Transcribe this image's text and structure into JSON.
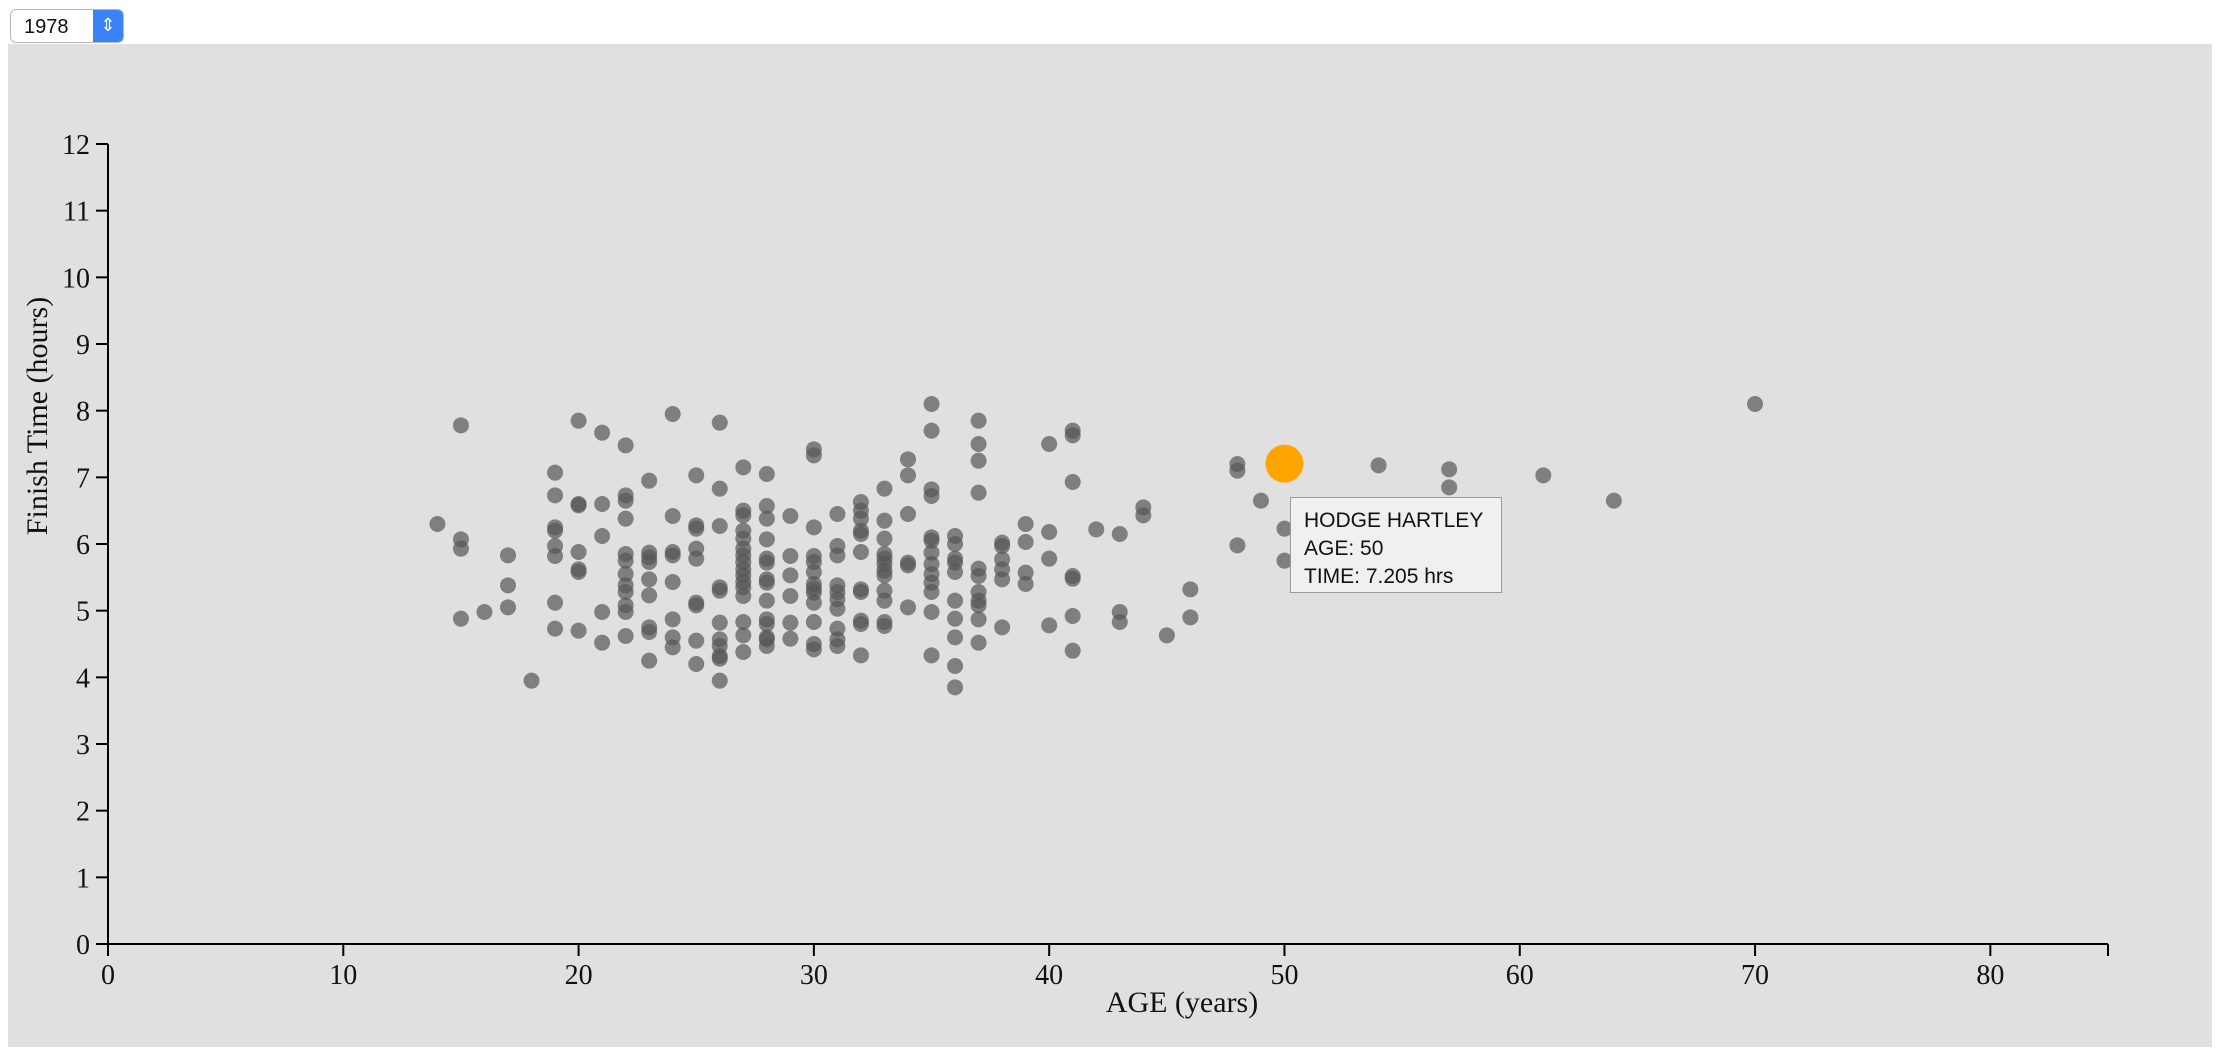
{
  "controls": {
    "year_select": {
      "value": "1978"
    }
  },
  "colors": {
    "background": "#e0e0e0",
    "points": "#555555",
    "highlight": "#ffa500"
  },
  "tooltip": {
    "name": "HODGE HARTLEY",
    "age_text": "AGE: 50",
    "time_text": "TIME: 7.205 hrs"
  },
  "chart_data": {
    "type": "scatter",
    "title": "",
    "xlabel": "AGE (years)",
    "ylabel": "Finish Time (hours)",
    "xlim": [
      0,
      85
    ],
    "ylim": [
      0,
      12
    ],
    "x_ticks": [
      "0",
      "10",
      "20",
      "30",
      "40",
      "50",
      "60",
      "70",
      "80"
    ],
    "y_ticks": [
      "0",
      "1",
      "2",
      "3",
      "4",
      "5",
      "6",
      "7",
      "8",
      "9",
      "10",
      "11",
      "12"
    ],
    "grid": false,
    "highlight": {
      "name": "HODGE HARTLEY",
      "x": 50,
      "y": 7.205
    },
    "points": [
      [
        14,
        6.3
      ],
      [
        15,
        7.78
      ],
      [
        15,
        6.07
      ],
      [
        15,
        5.93
      ],
      [
        15,
        4.88
      ],
      [
        16,
        4.98
      ],
      [
        17,
        5.83
      ],
      [
        17,
        5.38
      ],
      [
        17,
        5.05
      ],
      [
        18,
        3.95
      ],
      [
        19,
        7.07
      ],
      [
        19,
        6.73
      ],
      [
        19,
        6.25
      ],
      [
        19,
        6.2
      ],
      [
        19,
        5.97
      ],
      [
        19,
        5.82
      ],
      [
        19,
        5.12
      ],
      [
        19,
        4.73
      ],
      [
        20,
        7.85
      ],
      [
        20,
        6.58
      ],
      [
        20,
        6.6
      ],
      [
        20,
        5.88
      ],
      [
        20,
        5.62
      ],
      [
        20,
        5.58
      ],
      [
        20,
        4.7
      ],
      [
        21,
        7.67
      ],
      [
        21,
        6.6
      ],
      [
        21,
        6.12
      ],
      [
        21,
        4.98
      ],
      [
        21,
        4.52
      ],
      [
        22,
        7.48
      ],
      [
        22,
        6.73
      ],
      [
        22,
        6.65
      ],
      [
        22,
        6.38
      ],
      [
        22,
        5.85
      ],
      [
        22,
        5.75
      ],
      [
        22,
        5.55
      ],
      [
        22,
        5.38
      ],
      [
        22,
        5.28
      ],
      [
        22,
        5.08
      ],
      [
        22,
        4.98
      ],
      [
        22,
        4.62
      ],
      [
        23,
        6.95
      ],
      [
        23,
        5.87
      ],
      [
        23,
        5.8
      ],
      [
        23,
        5.73
      ],
      [
        23,
        5.47
      ],
      [
        23,
        5.23
      ],
      [
        23,
        4.75
      ],
      [
        23,
        4.68
      ],
      [
        23,
        4.25
      ],
      [
        24,
        7.95
      ],
      [
        24,
        6.42
      ],
      [
        24,
        5.88
      ],
      [
        24,
        5.83
      ],
      [
        24,
        5.43
      ],
      [
        24,
        4.87
      ],
      [
        24,
        4.6
      ],
      [
        24,
        4.45
      ],
      [
        25,
        7.03
      ],
      [
        25,
        6.28
      ],
      [
        25,
        6.23
      ],
      [
        25,
        5.93
      ],
      [
        25,
        5.78
      ],
      [
        25,
        5.12
      ],
      [
        25,
        5.08
      ],
      [
        25,
        4.55
      ],
      [
        25,
        4.2
      ],
      [
        26,
        7.82
      ],
      [
        26,
        6.83
      ],
      [
        26,
        6.27
      ],
      [
        26,
        5.35
      ],
      [
        26,
        5.3
      ],
      [
        26,
        4.82
      ],
      [
        26,
        4.57
      ],
      [
        26,
        4.47
      ],
      [
        26,
        4.32
      ],
      [
        26,
        4.28
      ],
      [
        26,
        3.95
      ],
      [
        27,
        7.15
      ],
      [
        27,
        6.5
      ],
      [
        27,
        6.43
      ],
      [
        27,
        6.2
      ],
      [
        27,
        6.08
      ],
      [
        27,
        5.93
      ],
      [
        27,
        5.83
      ],
      [
        27,
        5.73
      ],
      [
        27,
        5.62
      ],
      [
        27,
        5.53
      ],
      [
        27,
        5.43
      ],
      [
        27,
        5.35
      ],
      [
        27,
        5.22
      ],
      [
        27,
        4.83
      ],
      [
        27,
        4.63
      ],
      [
        27,
        4.38
      ],
      [
        28,
        7.05
      ],
      [
        28,
        6.57
      ],
      [
        28,
        6.38
      ],
      [
        28,
        6.07
      ],
      [
        28,
        5.78
      ],
      [
        28,
        5.72
      ],
      [
        28,
        5.47
      ],
      [
        28,
        5.42
      ],
      [
        28,
        5.15
      ],
      [
        28,
        4.87
      ],
      [
        28,
        4.8
      ],
      [
        28,
        4.6
      ],
      [
        28,
        4.57
      ],
      [
        28,
        4.47
      ],
      [
        29,
        6.42
      ],
      [
        29,
        5.82
      ],
      [
        29,
        5.53
      ],
      [
        29,
        5.22
      ],
      [
        29,
        4.82
      ],
      [
        29,
        4.58
      ],
      [
        30,
        7.42
      ],
      [
        30,
        7.33
      ],
      [
        30,
        6.25
      ],
      [
        30,
        5.82
      ],
      [
        30,
        5.73
      ],
      [
        30,
        5.58
      ],
      [
        30,
        5.4
      ],
      [
        30,
        5.33
      ],
      [
        30,
        5.27
      ],
      [
        30,
        5.12
      ],
      [
        30,
        4.83
      ],
      [
        30,
        4.5
      ],
      [
        30,
        4.42
      ],
      [
        31,
        6.45
      ],
      [
        31,
        5.97
      ],
      [
        31,
        5.83
      ],
      [
        31,
        5.38
      ],
      [
        31,
        5.28
      ],
      [
        31,
        5.17
      ],
      [
        31,
        5.03
      ],
      [
        31,
        4.73
      ],
      [
        31,
        4.57
      ],
      [
        31,
        4.47
      ],
      [
        32,
        6.63
      ],
      [
        32,
        6.5
      ],
      [
        32,
        6.38
      ],
      [
        32,
        6.2
      ],
      [
        32,
        6.15
      ],
      [
        32,
        5.88
      ],
      [
        32,
        5.32
      ],
      [
        32,
        5.28
      ],
      [
        32,
        4.85
      ],
      [
        32,
        4.8
      ],
      [
        32,
        4.33
      ],
      [
        33,
        6.83
      ],
      [
        33,
        6.35
      ],
      [
        33,
        6.08
      ],
      [
        33,
        5.85
      ],
      [
        33,
        5.78
      ],
      [
        33,
        5.7
      ],
      [
        33,
        5.6
      ],
      [
        33,
        5.53
      ],
      [
        33,
        5.3
      ],
      [
        33,
        5.15
      ],
      [
        33,
        4.83
      ],
      [
        33,
        4.77
      ],
      [
        34,
        7.27
      ],
      [
        34,
        7.03
      ],
      [
        34,
        6.45
      ],
      [
        34,
        5.72
      ],
      [
        34,
        5.68
      ],
      [
        34,
        5.05
      ],
      [
        35,
        8.1
      ],
      [
        35,
        7.7
      ],
      [
        35,
        6.82
      ],
      [
        35,
        6.72
      ],
      [
        35,
        6.1
      ],
      [
        35,
        6.05
      ],
      [
        35,
        5.87
      ],
      [
        35,
        5.7
      ],
      [
        35,
        5.55
      ],
      [
        35,
        5.42
      ],
      [
        35,
        5.28
      ],
      [
        35,
        4.98
      ],
      [
        35,
        4.33
      ],
      [
        36,
        6.12
      ],
      [
        36,
        6.0
      ],
      [
        36,
        5.78
      ],
      [
        36,
        5.72
      ],
      [
        36,
        5.58
      ],
      [
        36,
        5.15
      ],
      [
        36,
        4.88
      ],
      [
        36,
        4.6
      ],
      [
        36,
        4.17
      ],
      [
        36,
        3.85
      ],
      [
        37,
        7.85
      ],
      [
        37,
        7.5
      ],
      [
        37,
        7.25
      ],
      [
        37,
        6.77
      ],
      [
        37,
        5.63
      ],
      [
        37,
        5.52
      ],
      [
        37,
        5.28
      ],
      [
        37,
        5.15
      ],
      [
        37,
        5.08
      ],
      [
        37,
        4.87
      ],
      [
        37,
        4.52
      ],
      [
        38,
        6.02
      ],
      [
        38,
        5.97
      ],
      [
        38,
        5.77
      ],
      [
        38,
        5.62
      ],
      [
        38,
        5.47
      ],
      [
        38,
        4.75
      ],
      [
        39,
        6.3
      ],
      [
        39,
        6.03
      ],
      [
        39,
        5.57
      ],
      [
        39,
        5.4
      ],
      [
        40,
        7.5
      ],
      [
        40,
        6.18
      ],
      [
        40,
        5.78
      ],
      [
        40,
        4.78
      ],
      [
        41,
        7.7
      ],
      [
        41,
        7.63
      ],
      [
        41,
        6.93
      ],
      [
        41,
        5.52
      ],
      [
        41,
        5.48
      ],
      [
        41,
        4.92
      ],
      [
        41,
        4.4
      ],
      [
        42,
        6.22
      ],
      [
        43,
        6.15
      ],
      [
        43,
        4.98
      ],
      [
        43,
        4.83
      ],
      [
        44,
        6.55
      ],
      [
        44,
        6.43
      ],
      [
        45,
        4.63
      ],
      [
        46,
        5.32
      ],
      [
        46,
        4.9
      ],
      [
        48,
        7.2
      ],
      [
        48,
        7.1
      ],
      [
        48,
        5.98
      ],
      [
        49,
        6.65
      ],
      [
        50,
        6.23
      ],
      [
        50,
        5.75
      ],
      [
        54,
        7.18
      ],
      [
        57,
        7.12
      ],
      [
        57,
        6.85
      ],
      [
        61,
        7.03
      ],
      [
        64,
        6.65
      ],
      [
        70,
        8.1
      ]
    ]
  }
}
